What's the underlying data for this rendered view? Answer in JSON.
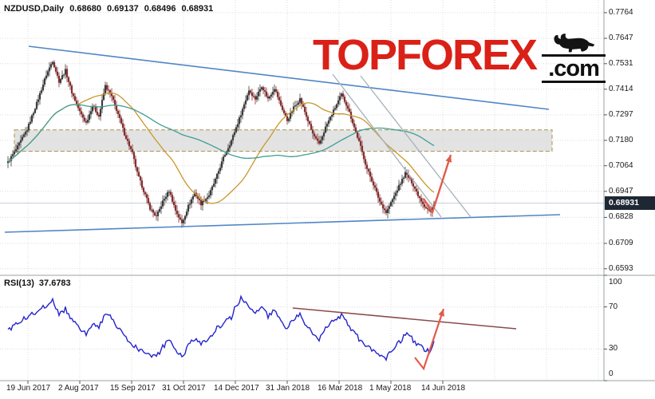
{
  "header": {
    "instrument": "NZDUSD,Daily",
    "open": "0.68680",
    "high": "0.69137",
    "low": "0.68496",
    "close": "0.68931"
  },
  "logo": {
    "top": "TOP",
    "forex": "FOREX",
    "com": ".com",
    "red": "#da2118",
    "black": "#101010"
  },
  "rsi_header": {
    "label": "RSI(13)",
    "value": "37.6783"
  },
  "price_axis": {
    "current": "0.68931",
    "badge_bg": "#1e2834",
    "labels": [
      "0.7764",
      "0.7647",
      "0.7531",
      "0.7414",
      "0.7297",
      "0.7180",
      "0.7064",
      "0.6947",
      "0.6828",
      "0.6709",
      "0.6593"
    ],
    "values": [
      0.7764,
      0.7647,
      0.7531,
      0.7414,
      0.7297,
      0.718,
      0.7064,
      0.6947,
      0.6828,
      0.6709,
      0.6593
    ]
  },
  "rsi_axis": {
    "labels": [
      "100",
      "70",
      "30",
      "0"
    ],
    "values": [
      100,
      70,
      30,
      0
    ]
  },
  "time_axis": {
    "labels": [
      "19 Jun 2017",
      "2 Aug 2017",
      "15 Sep 2017",
      "31 Oct 2017",
      "14 Dec 2017",
      "31 Jan 2018",
      "16 Mar 2018",
      "1 May 2018",
      "14 Jun 2018"
    ]
  },
  "colors": {
    "grid": "#dcdcdc",
    "axis_line": "#9aa0a6",
    "candle_up": "#3d3d3d",
    "candle_down": "#823131",
    "ma_fast": "#c9972b",
    "ma_slow": "#3f9e94",
    "trend_blue": "#4f86c6",
    "channel_gray": "#a9b6bd",
    "zone_fill": "#d9d9d9",
    "zone_border": "#a8904f",
    "arrow_red": "#e05b4b",
    "rsi_line": "#2424cc",
    "rsi_trend": "#8b4a4a",
    "bid_line": "#b9c2cc"
  },
  "chart_data": [
    {
      "type": "candlestick",
      "title": "NZDUSD, Daily",
      "ylim": [
        0.6593,
        0.7822
      ],
      "y_tick_values": [
        0.7764,
        0.7647,
        0.7531,
        0.7414,
        0.7297,
        0.718,
        0.7064,
        0.6947,
        0.6828,
        0.6709,
        0.6593
      ],
      "x_tick_labels": [
        "19 Jun 2017",
        "2 Aug 2017",
        "15 Sep 2017",
        "31 Oct 2017",
        "14 Dec 2017",
        "31 Jan 2018",
        "16 Mar 2018",
        "1 May 2018",
        "14 Jun 2018"
      ],
      "last_ohlc": {
        "open": 0.6868,
        "high": 0.69137,
        "low": 0.68496,
        "close": 0.68931
      },
      "num_candles": 268,
      "close_keypoints": [
        [
          0,
          0.708
        ],
        [
          6,
          0.715
        ],
        [
          12,
          0.723
        ],
        [
          18,
          0.735
        ],
        [
          24,
          0.748
        ],
        [
          28,
          0.7545
        ],
        [
          32,
          0.745
        ],
        [
          36,
          0.75
        ],
        [
          40,
          0.74
        ],
        [
          45,
          0.731
        ],
        [
          49,
          0.726
        ],
        [
          53,
          0.734
        ],
        [
          57,
          0.729
        ],
        [
          61,
          0.743
        ],
        [
          65,
          0.738
        ],
        [
          69,
          0.73
        ],
        [
          73,
          0.721
        ],
        [
          78,
          0.712
        ],
        [
          81,
          0.703
        ],
        [
          85,
          0.695
        ],
        [
          89,
          0.687
        ],
        [
          93,
          0.683
        ],
        [
          97,
          0.69
        ],
        [
          101,
          0.695
        ],
        [
          105,
          0.686
        ],
        [
          109,
          0.68
        ],
        [
          113,
          0.688
        ],
        [
          117,
          0.694
        ],
        [
          121,
          0.689
        ],
        [
          126,
          0.693
        ],
        [
          130,
          0.7
        ],
        [
          135,
          0.71
        ],
        [
          140,
          0.718
        ],
        [
          145,
          0.728
        ],
        [
          151,
          0.741
        ],
        [
          155,
          0.737
        ],
        [
          159,
          0.743
        ],
        [
          163,
          0.737
        ],
        [
          167,
          0.742
        ],
        [
          171,
          0.734
        ],
        [
          175,
          0.727
        ],
        [
          179,
          0.733
        ],
        [
          183,
          0.737
        ],
        [
          187,
          0.729
        ],
        [
          191,
          0.721
        ],
        [
          195,
          0.716
        ],
        [
          199,
          0.724
        ],
        [
          203,
          0.73
        ],
        [
          209,
          0.739
        ],
        [
          213,
          0.733
        ],
        [
          217,
          0.724
        ],
        [
          221,
          0.715
        ],
        [
          225,
          0.705
        ],
        [
          229,
          0.698
        ],
        [
          233,
          0.69
        ],
        [
          237,
          0.685
        ],
        [
          241,
          0.691
        ],
        [
          245,
          0.697
        ],
        [
          249,
          0.703
        ],
        [
          253,
          0.699
        ],
        [
          257,
          0.693
        ],
        [
          261,
          0.688
        ],
        [
          265,
          0.685
        ],
        [
          267,
          0.6893
        ]
      ],
      "moving_averages": [
        {
          "name": "ma-fast-line",
          "period": 45,
          "color": "#c9972b"
        },
        {
          "name": "ma-slow-line",
          "period": 110,
          "color": "#3f9e94"
        }
      ],
      "annotations": {
        "resistance_zone": {
          "price_from": 0.713,
          "price_to": 0.7228,
          "x_from": 18,
          "x_to": 692,
          "fill": "#d9d9d9",
          "border": "#a8904f"
        },
        "upper_trendline": {
          "x1": 36,
          "y1": 58,
          "x2": 688,
          "y2": 137,
          "color": "#4f86c6"
        },
        "lower_trendline": {
          "x1": 6,
          "y1": 291,
          "x2": 702,
          "y2": 269,
          "color": "#4f86c6"
        },
        "channel_color": "#a9b6bd",
        "channel_lines": [
          {
            "x1": 417,
            "y1": 93,
            "x2": 553,
            "y2": 272
          },
          {
            "x1": 452,
            "y1": 95,
            "x2": 590,
            "y2": 272
          }
        ],
        "forecast_arrow": {
          "points": [
            [
              531,
              249
            ],
            [
              542,
              266
            ],
            [
              565,
              194
            ]
          ],
          "color": "#e05b4b"
        }
      }
    },
    {
      "type": "line",
      "name": "RSI(13)",
      "current": 37.6783,
      "ylim": [
        0,
        100
      ],
      "levels": [
        70,
        30
      ],
      "color": "#2424cc",
      "keypoints": [
        [
          0,
          48
        ],
        [
          6,
          55
        ],
        [
          12,
          60
        ],
        [
          18,
          66
        ],
        [
          24,
          72
        ],
        [
          28,
          76
        ],
        [
          32,
          62
        ],
        [
          36,
          68
        ],
        [
          40,
          58
        ],
        [
          45,
          50
        ],
        [
          49,
          45
        ],
        [
          53,
          55
        ],
        [
          57,
          50
        ],
        [
          61,
          65
        ],
        [
          65,
          60
        ],
        [
          69,
          50
        ],
        [
          73,
          42
        ],
        [
          78,
          35
        ],
        [
          81,
          30
        ],
        [
          85,
          27
        ],
        [
          89,
          24
        ],
        [
          93,
          22
        ],
        [
          97,
          32
        ],
        [
          101,
          38
        ],
        [
          105,
          28
        ],
        [
          109,
          23
        ],
        [
          113,
          33
        ],
        [
          117,
          40
        ],
        [
          121,
          35
        ],
        [
          126,
          40
        ],
        [
          130,
          48
        ],
        [
          135,
          55
        ],
        [
          140,
          60
        ],
        [
          143,
          72
        ],
        [
          146,
          78
        ],
        [
          151,
          72
        ],
        [
          155,
          65
        ],
        [
          159,
          72
        ],
        [
          163,
          60
        ],
        [
          167,
          68
        ],
        [
          171,
          56
        ],
        [
          175,
          50
        ],
        [
          179,
          58
        ],
        [
          183,
          62
        ],
        [
          187,
          52
        ],
        [
          191,
          44
        ],
        [
          195,
          40
        ],
        [
          199,
          50
        ],
        [
          203,
          56
        ],
        [
          209,
          62
        ],
        [
          213,
          54
        ],
        [
          217,
          46
        ],
        [
          221,
          38
        ],
        [
          225,
          32
        ],
        [
          229,
          28
        ],
        [
          233,
          25
        ],
        [
          237,
          22
        ],
        [
          241,
          30
        ],
        [
          245,
          36
        ],
        [
          249,
          44
        ],
        [
          253,
          40
        ],
        [
          257,
          34
        ],
        [
          261,
          30
        ],
        [
          265,
          27
        ],
        [
          267,
          37.7
        ]
      ],
      "annotations": {
        "trendline": {
          "x1": 367,
          "y1": 386,
          "x2": 647,
          "y2": 412,
          "color": "#8b4a4a"
        },
        "forecast_arrow": {
          "points": [
            [
              520,
              448
            ],
            [
              531,
              462
            ],
            [
              556,
              387
            ]
          ],
          "color": "#e05b4b"
        }
      }
    }
  ]
}
